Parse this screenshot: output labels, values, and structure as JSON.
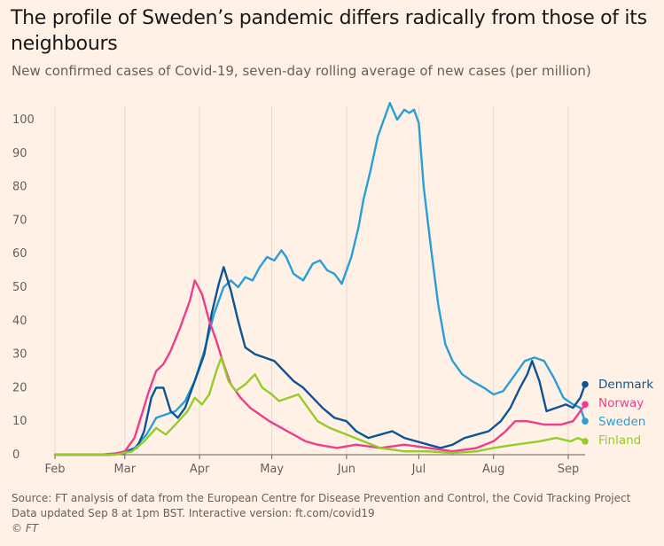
{
  "title": "The profile of Sweden’s pandemic differs radically from those of its neighbours",
  "subtitle": "New confirmed cases of Covid-19, seven-day rolling average of new cases (per million)",
  "source_line1": "Source: FT analysis of data from the European Centre for Disease Prevention and Control, the Covid Tracking Project",
  "source_line2": "Data updated Sep 8 at 1pm BST. Interactive version: ft.com/covid19",
  "source_line3": "© FT",
  "chart_data": {
    "type": "line",
    "title": "The profile of Sweden’s pandemic differs radically from those of its neighbours",
    "subtitle": "New confirmed cases of Covid-19, seven-day rolling average of new cases (per million)",
    "x_unit": "date (2020)",
    "xlim": [
      "2020-02-01",
      "2020-09-08"
    ],
    "ylim": [
      0,
      105
    ],
    "yticks": [
      0,
      10,
      20,
      30,
      40,
      50,
      60,
      70,
      80,
      90,
      100
    ],
    "xticks": [
      {
        "label": "Feb",
        "date": "2020-02-01"
      },
      {
        "label": "Mar",
        "date": "2020-03-01"
      },
      {
        "label": "Apr",
        "date": "2020-04-01"
      },
      {
        "label": "May",
        "date": "2020-05-01"
      },
      {
        "label": "Jun",
        "date": "2020-06-01"
      },
      {
        "label": "Jul",
        "date": "2020-07-01"
      },
      {
        "label": "Aug",
        "date": "2020-08-01"
      },
      {
        "label": "Sep",
        "date": "2020-09-01"
      }
    ],
    "grid": "vertical",
    "legend": "direct labels at line ends (right)",
    "series": [
      {
        "name": "Sweden",
        "color": "#2A9ED8",
        "points": [
          [
            "2020-02-01",
            0
          ],
          [
            "2020-02-20",
            0
          ],
          [
            "2020-02-28",
            0.5
          ],
          [
            "2020-03-05",
            2
          ],
          [
            "2020-03-10",
            6
          ],
          [
            "2020-03-14",
            11
          ],
          [
            "2020-03-18",
            12
          ],
          [
            "2020-03-22",
            13
          ],
          [
            "2020-03-26",
            16
          ],
          [
            "2020-03-30",
            22
          ],
          [
            "2020-04-03",
            31
          ],
          [
            "2020-04-07",
            42
          ],
          [
            "2020-04-11",
            50
          ],
          [
            "2020-04-14",
            52
          ],
          [
            "2020-04-17",
            50
          ],
          [
            "2020-04-20",
            53
          ],
          [
            "2020-04-23",
            52
          ],
          [
            "2020-04-26",
            56
          ],
          [
            "2020-04-29",
            59
          ],
          [
            "2020-05-02",
            58
          ],
          [
            "2020-05-05",
            61
          ],
          [
            "2020-05-07",
            59
          ],
          [
            "2020-05-10",
            54
          ],
          [
            "2020-05-14",
            52
          ],
          [
            "2020-05-18",
            57
          ],
          [
            "2020-05-21",
            58
          ],
          [
            "2020-05-24",
            55
          ],
          [
            "2020-05-27",
            54
          ],
          [
            "2020-05-30",
            51
          ],
          [
            "2020-06-03",
            59
          ],
          [
            "2020-06-06",
            68
          ],
          [
            "2020-06-08",
            76
          ],
          [
            "2020-06-11",
            85
          ],
          [
            "2020-06-14",
            95
          ],
          [
            "2020-06-17",
            101
          ],
          [
            "2020-06-19",
            105
          ],
          [
            "2020-06-22",
            100
          ],
          [
            "2020-06-25",
            103
          ],
          [
            "2020-06-27",
            102
          ],
          [
            "2020-06-29",
            103
          ],
          [
            "2020-07-01",
            99
          ],
          [
            "2020-07-03",
            80
          ],
          [
            "2020-07-06",
            62
          ],
          [
            "2020-07-09",
            45
          ],
          [
            "2020-07-12",
            33
          ],
          [
            "2020-07-15",
            28
          ],
          [
            "2020-07-19",
            24
          ],
          [
            "2020-07-23",
            22
          ],
          [
            "2020-07-28",
            20
          ],
          [
            "2020-08-01",
            18
          ],
          [
            "2020-08-05",
            19
          ],
          [
            "2020-08-10",
            24
          ],
          [
            "2020-08-14",
            28
          ],
          [
            "2020-08-18",
            29
          ],
          [
            "2020-08-22",
            28
          ],
          [
            "2020-08-26",
            23
          ],
          [
            "2020-08-30",
            17
          ],
          [
            "2020-09-03",
            15
          ],
          [
            "2020-09-06",
            14
          ],
          [
            "2020-09-08",
            10
          ]
        ]
      },
      {
        "name": "Denmark",
        "color": "#0D5497",
        "points": [
          [
            "2020-02-01",
            0
          ],
          [
            "2020-02-24",
            0
          ],
          [
            "2020-03-01",
            0.5
          ],
          [
            "2020-03-06",
            2
          ],
          [
            "2020-03-09",
            7
          ],
          [
            "2020-03-12",
            17
          ],
          [
            "2020-03-14",
            20
          ],
          [
            "2020-03-17",
            20
          ],
          [
            "2020-03-20",
            13
          ],
          [
            "2020-03-23",
            11
          ],
          [
            "2020-03-26",
            14
          ],
          [
            "2020-03-30",
            22
          ],
          [
            "2020-04-03",
            30
          ],
          [
            "2020-04-06",
            42
          ],
          [
            "2020-04-09",
            51
          ],
          [
            "2020-04-11",
            56
          ],
          [
            "2020-04-14",
            49
          ],
          [
            "2020-04-17",
            40
          ],
          [
            "2020-04-20",
            32
          ],
          [
            "2020-04-24",
            30
          ],
          [
            "2020-04-28",
            29
          ],
          [
            "2020-05-02",
            28
          ],
          [
            "2020-05-06",
            25
          ],
          [
            "2020-05-10",
            22
          ],
          [
            "2020-05-14",
            20
          ],
          [
            "2020-05-18",
            17
          ],
          [
            "2020-05-22",
            14
          ],
          [
            "2020-05-27",
            11
          ],
          [
            "2020-06-01",
            10
          ],
          [
            "2020-06-05",
            7
          ],
          [
            "2020-06-10",
            5
          ],
          [
            "2020-06-15",
            6
          ],
          [
            "2020-06-20",
            7
          ],
          [
            "2020-06-25",
            5
          ],
          [
            "2020-06-30",
            4
          ],
          [
            "2020-07-05",
            3
          ],
          [
            "2020-07-10",
            2
          ],
          [
            "2020-07-15",
            3
          ],
          [
            "2020-07-20",
            5
          ],
          [
            "2020-07-25",
            6
          ],
          [
            "2020-07-30",
            7
          ],
          [
            "2020-08-04",
            10
          ],
          [
            "2020-08-08",
            14
          ],
          [
            "2020-08-12",
            20
          ],
          [
            "2020-08-15",
            24
          ],
          [
            "2020-08-17",
            28
          ],
          [
            "2020-08-20",
            22
          ],
          [
            "2020-08-23",
            13
          ],
          [
            "2020-08-27",
            14
          ],
          [
            "2020-08-31",
            15
          ],
          [
            "2020-09-03",
            14
          ],
          [
            "2020-09-06",
            17
          ],
          [
            "2020-09-08",
            21
          ]
        ]
      },
      {
        "name": "Norway",
        "color": "#EE3D8A",
        "points": [
          [
            "2020-02-01",
            0
          ],
          [
            "2020-02-24",
            0
          ],
          [
            "2020-03-01",
            1
          ],
          [
            "2020-03-05",
            5
          ],
          [
            "2020-03-08",
            12
          ],
          [
            "2020-03-11",
            19
          ],
          [
            "2020-03-14",
            25
          ],
          [
            "2020-03-17",
            27
          ],
          [
            "2020-03-20",
            31
          ],
          [
            "2020-03-24",
            38
          ],
          [
            "2020-03-28",
            46
          ],
          [
            "2020-03-30",
            52
          ],
          [
            "2020-04-02",
            48
          ],
          [
            "2020-04-05",
            40
          ],
          [
            "2020-04-08",
            34
          ],
          [
            "2020-04-11",
            27
          ],
          [
            "2020-04-14",
            21
          ],
          [
            "2020-04-18",
            17
          ],
          [
            "2020-04-22",
            14
          ],
          [
            "2020-04-26",
            12
          ],
          [
            "2020-04-30",
            10
          ],
          [
            "2020-05-05",
            8
          ],
          [
            "2020-05-10",
            6
          ],
          [
            "2020-05-15",
            4
          ],
          [
            "2020-05-20",
            3
          ],
          [
            "2020-05-28",
            2
          ],
          [
            "2020-06-05",
            3
          ],
          [
            "2020-06-15",
            2
          ],
          [
            "2020-06-25",
            3
          ],
          [
            "2020-07-05",
            2
          ],
          [
            "2020-07-15",
            1
          ],
          [
            "2020-07-25",
            2
          ],
          [
            "2020-08-01",
            4
          ],
          [
            "2020-08-06",
            7
          ],
          [
            "2020-08-10",
            10
          ],
          [
            "2020-08-15",
            10
          ],
          [
            "2020-08-22",
            9
          ],
          [
            "2020-08-29",
            9
          ],
          [
            "2020-09-03",
            10
          ],
          [
            "2020-09-06",
            13
          ],
          [
            "2020-09-08",
            15
          ]
        ]
      },
      {
        "name": "Finland",
        "color": "#96CC28",
        "points": [
          [
            "2020-02-01",
            0
          ],
          [
            "2020-02-26",
            0
          ],
          [
            "2020-03-04",
            1
          ],
          [
            "2020-03-09",
            4
          ],
          [
            "2020-03-14",
            8
          ],
          [
            "2020-03-18",
            6
          ],
          [
            "2020-03-22",
            9
          ],
          [
            "2020-03-27",
            13
          ],
          [
            "2020-03-30",
            17
          ],
          [
            "2020-04-02",
            15
          ],
          [
            "2020-04-05",
            18
          ],
          [
            "2020-04-08",
            25
          ],
          [
            "2020-04-10",
            29
          ],
          [
            "2020-04-13",
            22
          ],
          [
            "2020-04-16",
            19
          ],
          [
            "2020-04-20",
            21
          ],
          [
            "2020-04-24",
            24
          ],
          [
            "2020-04-27",
            20
          ],
          [
            "2020-05-01",
            18
          ],
          [
            "2020-05-04",
            16
          ],
          [
            "2020-05-08",
            17
          ],
          [
            "2020-05-12",
            18
          ],
          [
            "2020-05-16",
            14
          ],
          [
            "2020-05-20",
            10
          ],
          [
            "2020-05-25",
            8
          ],
          [
            "2020-06-01",
            6
          ],
          [
            "2020-06-08",
            4
          ],
          [
            "2020-06-15",
            2
          ],
          [
            "2020-06-25",
            1
          ],
          [
            "2020-07-05",
            1
          ],
          [
            "2020-07-15",
            0.5
          ],
          [
            "2020-07-25",
            1
          ],
          [
            "2020-08-01",
            2
          ],
          [
            "2020-08-10",
            3
          ],
          [
            "2020-08-20",
            4
          ],
          [
            "2020-08-27",
            5
          ],
          [
            "2020-09-02",
            4
          ],
          [
            "2020-09-05",
            5
          ],
          [
            "2020-09-08",
            4
          ]
        ]
      }
    ]
  }
}
